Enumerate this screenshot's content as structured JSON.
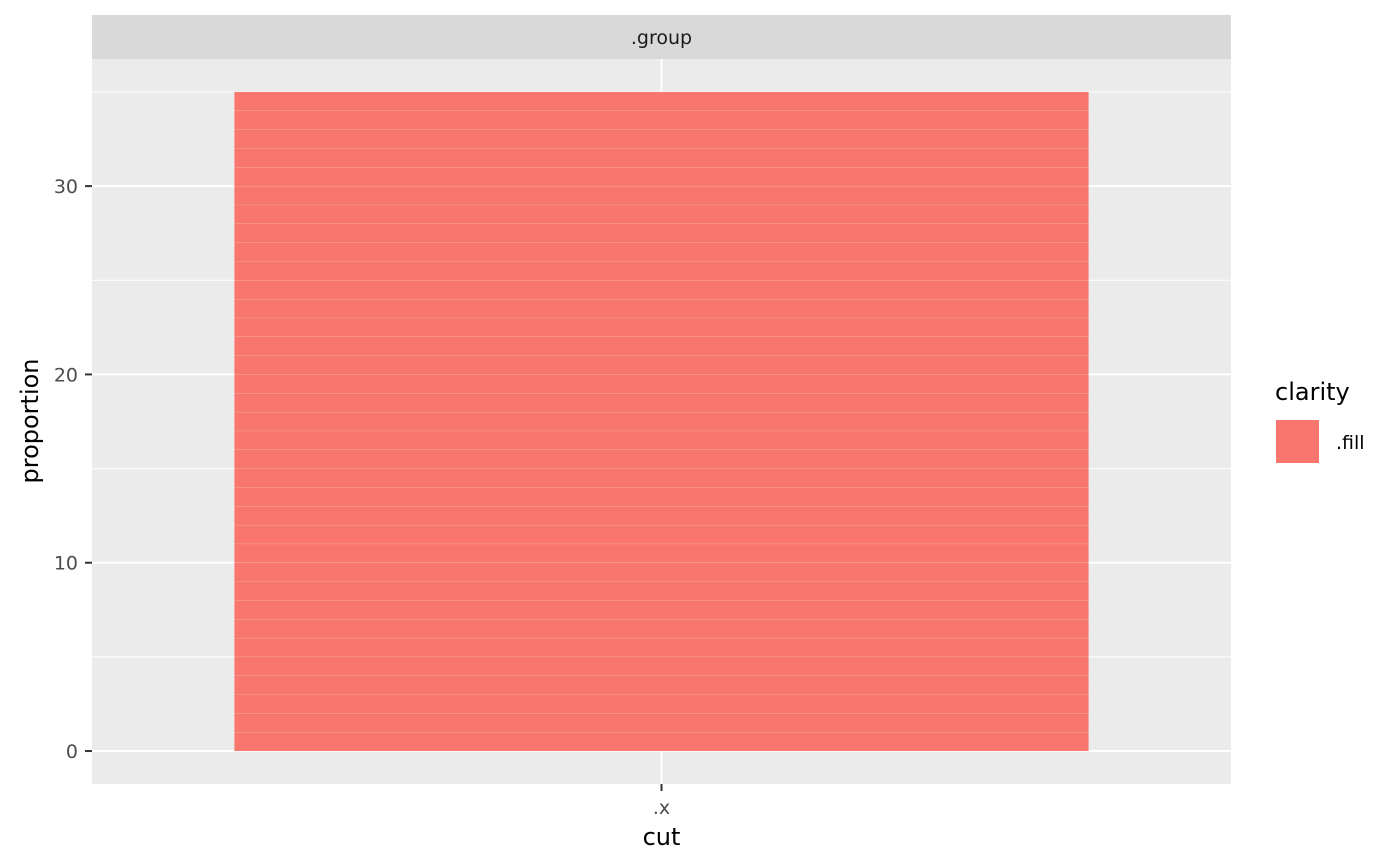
{
  "chart_data": {
    "type": "bar",
    "facet_label": ".group",
    "categories": [
      ".x"
    ],
    "series": [
      {
        "name": ".fill",
        "values": [
          35
        ]
      }
    ],
    "stacked_segments": 35,
    "xlabel": "cut",
    "ylabel": "proportion",
    "ylim": [
      -1.75,
      36.75
    ],
    "yticks": [
      0,
      10,
      20,
      30
    ],
    "ytick_labels": [
      "0",
      "10",
      "20",
      "30"
    ],
    "legend": {
      "title": "clarity",
      "position": "right",
      "entries": [
        {
          "label": ".fill",
          "color": "#F8766D"
        }
      ]
    },
    "grid": true,
    "colors": {
      "panel_background": "#EBEBEB",
      "strip_background": "#D9D9D9",
      "grid_line": "#FFFFFF",
      "bar_fill": "#F8766D"
    }
  }
}
